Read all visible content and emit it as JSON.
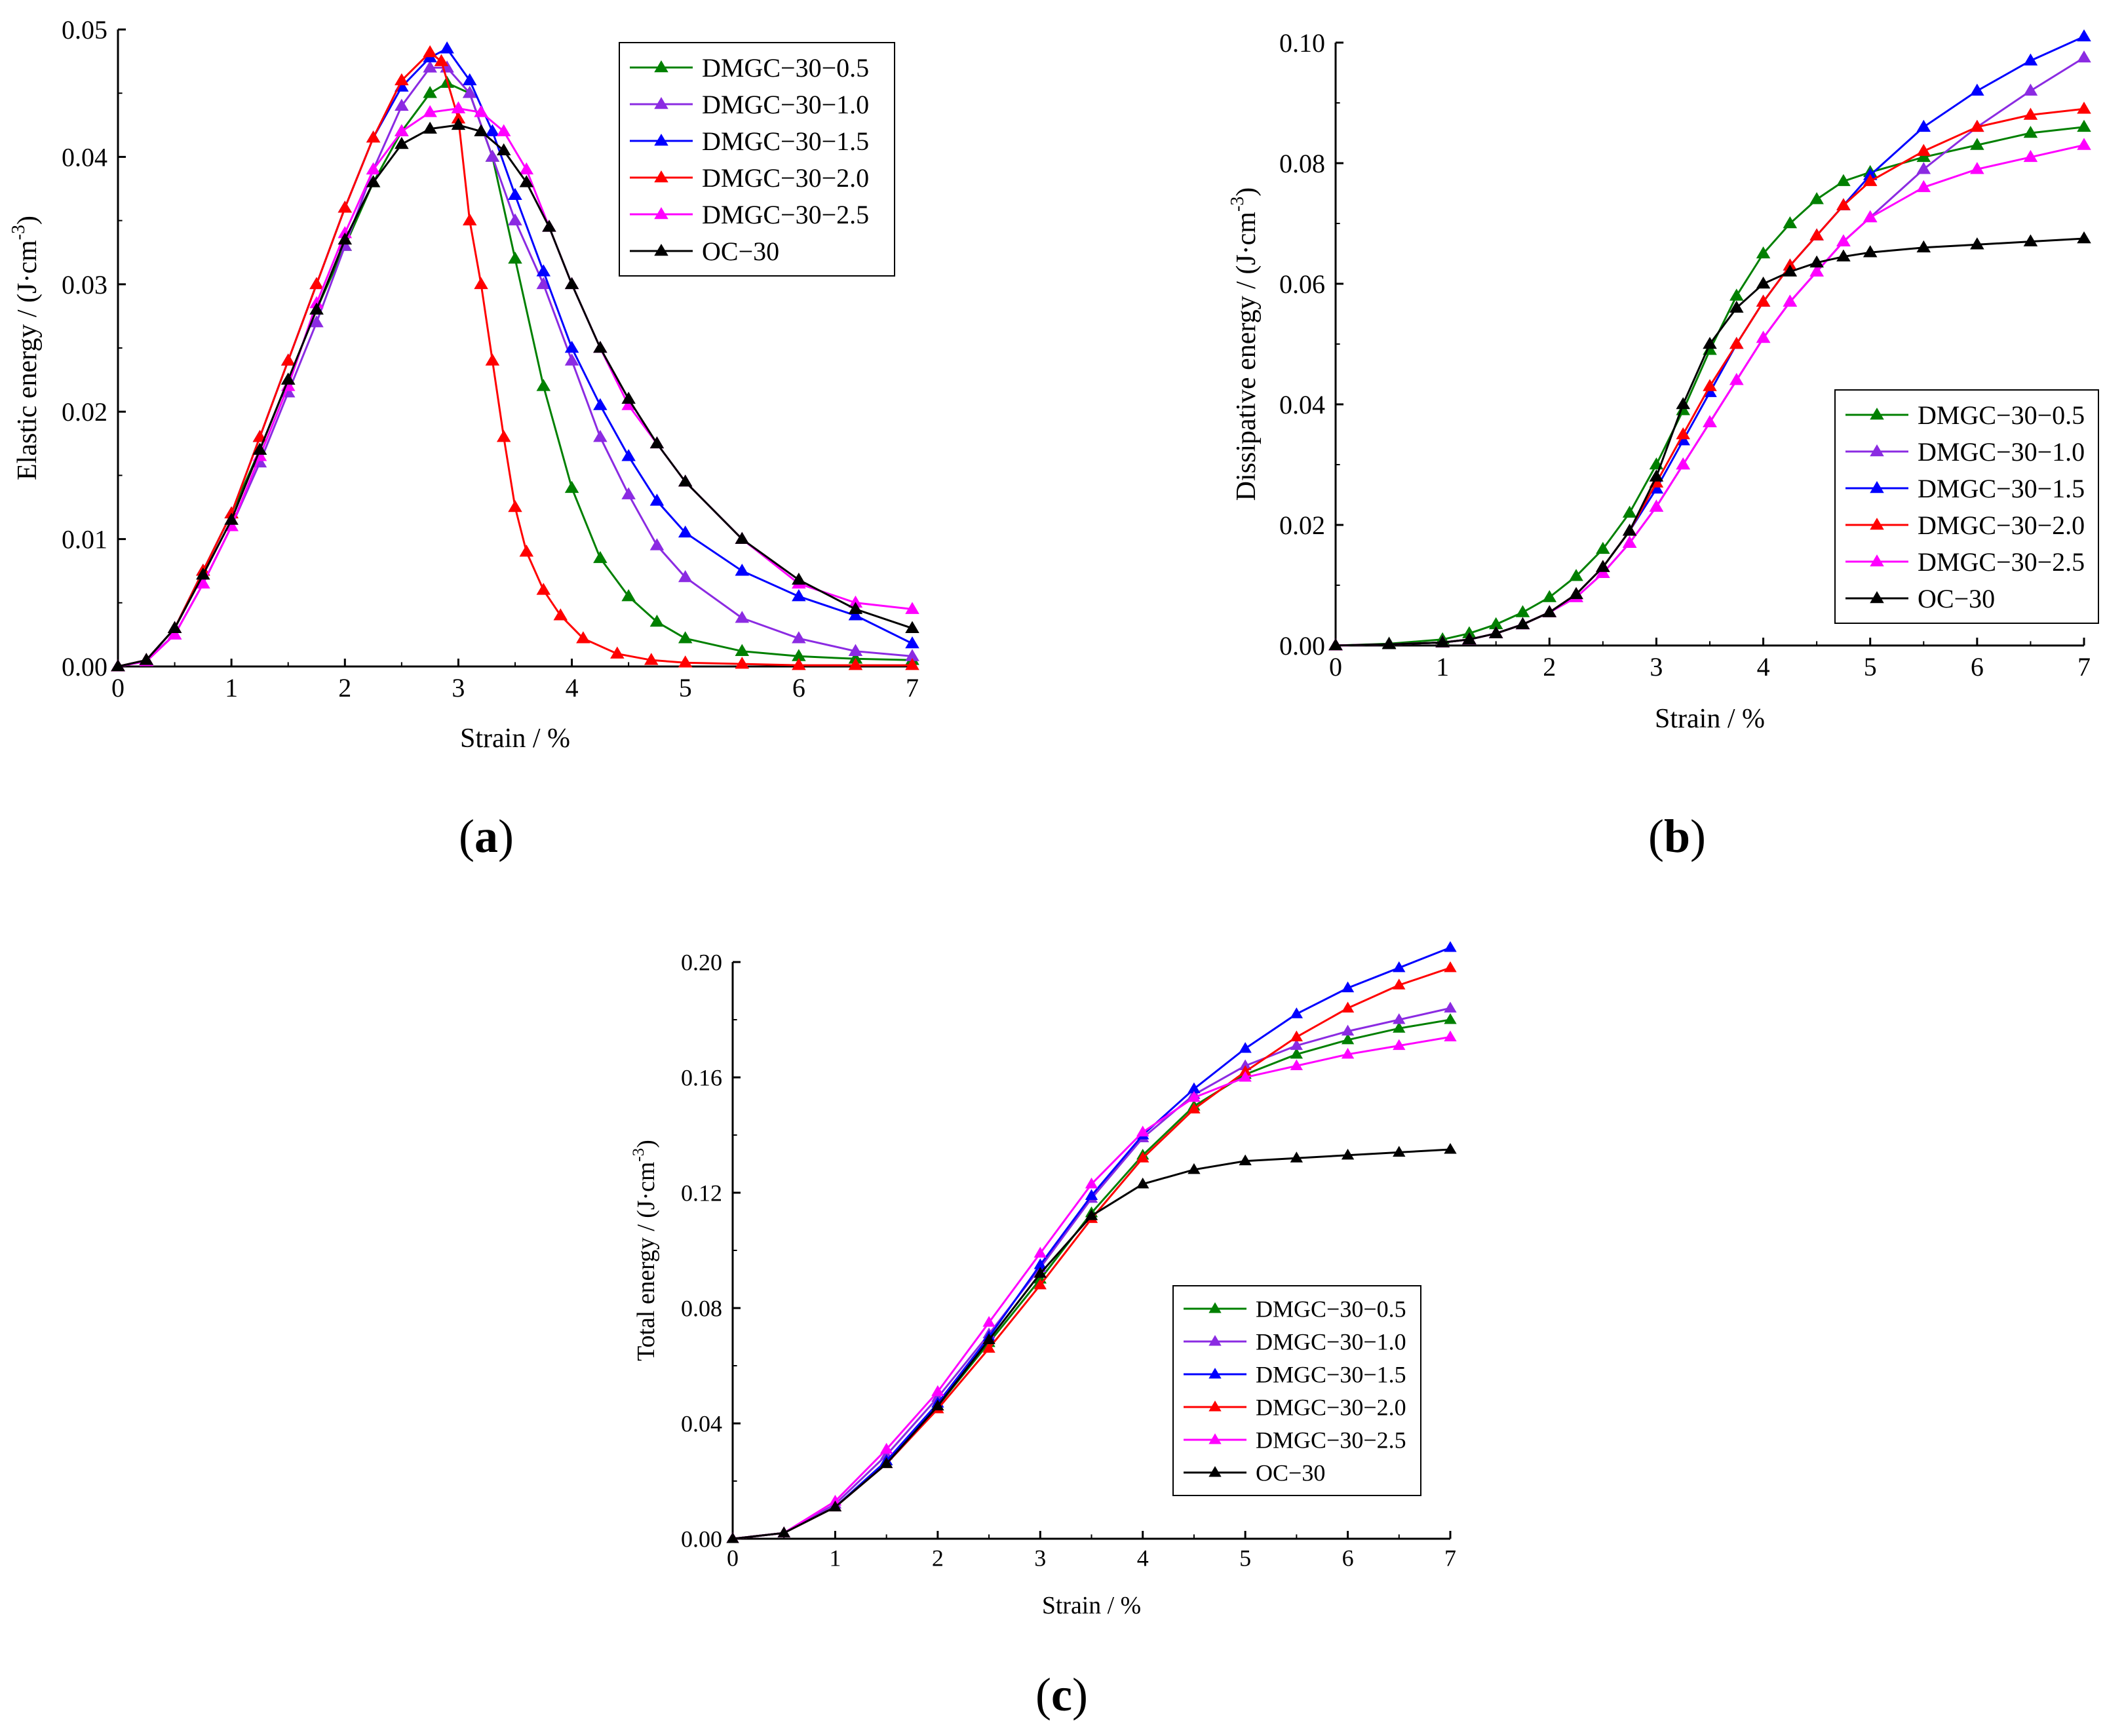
{
  "figure": {
    "panel_labels": [
      {
        "open": "(",
        "letter": "a",
        "close": ")"
      },
      {
        "open": "(",
        "letter": "b",
        "close": ")"
      },
      {
        "open": "(",
        "letter": "c",
        "close": ")"
      }
    ]
  },
  "colors": {
    "DMGC-30-0.5": "#008000",
    "DMGC-30-1.0": "#8b2be2",
    "DMGC-30-1.5": "#0000ff",
    "DMGC-30-2.0": "#ff0000",
    "DMGC-30-2.5": "#ff00ff",
    "OC-30": "#000000"
  },
  "chart_data": [
    {
      "type": "line",
      "panel": "a",
      "title": "",
      "xlabel": "Strain / %",
      "ylabel": "Elastic energy / (J·cm⁻³)",
      "xlim": [
        0,
        7
      ],
      "ylim": [
        0,
        0.05
      ],
      "xticks": [
        "0",
        "1",
        "2",
        "3",
        "4",
        "5",
        "6",
        "7"
      ],
      "yticks": [
        "0.00",
        "0.01",
        "0.02",
        "0.03",
        "0.04",
        "0.05"
      ],
      "legend_position": "top-right",
      "marker": "triangle",
      "series": [
        {
          "name": "DMGC−30−0.5",
          "key": "DMGC-30-0.5",
          "x": [
            0,
            0.25,
            0.5,
            0.75,
            1,
            1.25,
            1.5,
            1.75,
            2,
            2.25,
            2.5,
            2.75,
            2.9,
            3.1,
            3.3,
            3.5,
            3.75,
            4,
            4.25,
            4.5,
            4.75,
            5,
            5.5,
            6,
            6.5,
            7
          ],
          "y": [
            0,
            0.0005,
            0.003,
            0.0075,
            0.012,
            0.017,
            0.0225,
            0.028,
            0.033,
            0.038,
            0.042,
            0.045,
            0.0458,
            0.045,
            0.04,
            0.032,
            0.022,
            0.014,
            0.0085,
            0.0055,
            0.0035,
            0.0022,
            0.0012,
            0.0008,
            0.0006,
            0.0005
          ]
        },
        {
          "name": "DMGC−30−1.0",
          "key": "DMGC-30-1.0",
          "x": [
            0,
            0.25,
            0.5,
            0.75,
            1,
            1.25,
            1.5,
            1.75,
            2,
            2.25,
            2.5,
            2.75,
            2.9,
            3.1,
            3.3,
            3.5,
            3.75,
            4,
            4.25,
            4.5,
            4.75,
            5,
            5.5,
            6,
            6.5,
            7
          ],
          "y": [
            0,
            0.0005,
            0.0025,
            0.0065,
            0.011,
            0.016,
            0.0215,
            0.027,
            0.033,
            0.039,
            0.044,
            0.047,
            0.047,
            0.045,
            0.04,
            0.035,
            0.03,
            0.024,
            0.018,
            0.0135,
            0.0095,
            0.007,
            0.0038,
            0.0022,
            0.0012,
            0.0008
          ]
        },
        {
          "name": "DMGC−30−1.5",
          "key": "DMGC-30-1.5",
          "x": [
            0,
            0.25,
            0.5,
            0.75,
            1,
            1.25,
            1.5,
            1.75,
            2,
            2.25,
            2.5,
            2.75,
            2.9,
            3.1,
            3.3,
            3.5,
            3.75,
            4,
            4.25,
            4.5,
            4.75,
            5,
            5.5,
            6,
            6.5,
            7
          ],
          "y": [
            0,
            0.0005,
            0.003,
            0.0075,
            0.012,
            0.018,
            0.024,
            0.03,
            0.036,
            0.0415,
            0.0455,
            0.0478,
            0.0485,
            0.046,
            0.042,
            0.037,
            0.031,
            0.025,
            0.0205,
            0.0165,
            0.013,
            0.0105,
            0.0075,
            0.0055,
            0.004,
            0.0018
          ]
        },
        {
          "name": "DMGC−30−2.0",
          "key": "DMGC-30-2.0",
          "x": [
            0,
            0.25,
            0.5,
            0.75,
            1,
            1.25,
            1.5,
            1.75,
            2,
            2.25,
            2.5,
            2.75,
            2.85,
            3,
            3.1,
            3.2,
            3.3,
            3.4,
            3.5,
            3.6,
            3.75,
            3.9,
            4.1,
            4.4,
            4.7,
            5,
            5.5,
            6,
            6.5,
            7
          ],
          "y": [
            0,
            0.0005,
            0.003,
            0.0075,
            0.012,
            0.018,
            0.024,
            0.03,
            0.036,
            0.0415,
            0.046,
            0.0482,
            0.0475,
            0.043,
            0.035,
            0.03,
            0.024,
            0.018,
            0.0125,
            0.009,
            0.006,
            0.004,
            0.0022,
            0.001,
            0.0005,
            0.0003,
            0.0002,
            0.0001,
            0.0001,
            0.0001
          ]
        },
        {
          "name": "DMGC−30−2.5",
          "key": "DMGC-30-2.5",
          "x": [
            0,
            0.25,
            0.5,
            0.75,
            1,
            1.25,
            1.5,
            1.75,
            2,
            2.25,
            2.5,
            2.75,
            3,
            3.2,
            3.4,
            3.6,
            3.8,
            4,
            4.25,
            4.5,
            4.75,
            5,
            5.5,
            6,
            6.5,
            7
          ],
          "y": [
            0,
            0.0004,
            0.0025,
            0.0065,
            0.011,
            0.0165,
            0.022,
            0.0285,
            0.034,
            0.039,
            0.042,
            0.0435,
            0.0438,
            0.0435,
            0.042,
            0.039,
            0.0345,
            0.03,
            0.025,
            0.0205,
            0.0175,
            0.0145,
            0.01,
            0.0065,
            0.005,
            0.0045
          ]
        },
        {
          "name": "OC−30",
          "key": "OC-30",
          "x": [
            0,
            0.25,
            0.5,
            0.75,
            1,
            1.25,
            1.5,
            1.75,
            2,
            2.25,
            2.5,
            2.75,
            3,
            3.2,
            3.4,
            3.6,
            3.8,
            4,
            4.25,
            4.5,
            4.75,
            5,
            5.5,
            6,
            6.5,
            7
          ],
          "y": [
            0,
            0.0005,
            0.003,
            0.0072,
            0.0115,
            0.017,
            0.0225,
            0.028,
            0.0335,
            0.038,
            0.041,
            0.0422,
            0.0425,
            0.042,
            0.0405,
            0.038,
            0.0345,
            0.03,
            0.025,
            0.021,
            0.0175,
            0.0145,
            0.01,
            0.0068,
            0.0045,
            0.003
          ]
        }
      ]
    },
    {
      "type": "line",
      "panel": "b",
      "title": "",
      "xlabel": "Strain / %",
      "ylabel": "Dissipative energy / (J·cm⁻³)",
      "xlim": [
        0,
        7
      ],
      "ylim": [
        0,
        0.1
      ],
      "xticks": [
        "0",
        "1",
        "2",
        "3",
        "4",
        "5",
        "6",
        "7"
      ],
      "yticks": [
        "0.00",
        "0.02",
        "0.04",
        "0.06",
        "0.08",
        "0.10"
      ],
      "legend_position": "center-right",
      "marker": "triangle",
      "series": [
        {
          "name": "DMGC−30−0.5",
          "key": "DMGC-30-0.5",
          "x": [
            0,
            0.5,
            1,
            1.25,
            1.5,
            1.75,
            2,
            2.25,
            2.5,
            2.75,
            3,
            3.25,
            3.5,
            3.75,
            4,
            4.25,
            4.5,
            4.75,
            5,
            5.5,
            6,
            6.5,
            7
          ],
          "y": [
            0,
            0.0003,
            0.001,
            0.002,
            0.0035,
            0.0055,
            0.008,
            0.0115,
            0.016,
            0.022,
            0.03,
            0.039,
            0.049,
            0.058,
            0.065,
            0.07,
            0.074,
            0.077,
            0.0785,
            0.081,
            0.083,
            0.085,
            0.086
          ]
        },
        {
          "name": "DMGC−30−1.0",
          "key": "DMGC-30-1.0",
          "x": [
            0,
            0.5,
            1,
            1.25,
            1.5,
            1.75,
            2,
            2.25,
            2.5,
            2.75,
            3,
            3.25,
            3.5,
            3.75,
            4,
            4.25,
            4.5,
            4.75,
            5,
            5.5,
            6,
            6.5,
            7
          ],
          "y": [
            0,
            0.0002,
            0.0005,
            0.001,
            0.002,
            0.0035,
            0.0055,
            0.008,
            0.012,
            0.017,
            0.023,
            0.03,
            0.037,
            0.044,
            0.051,
            0.057,
            0.062,
            0.067,
            0.071,
            0.079,
            0.086,
            0.092,
            0.0975
          ]
        },
        {
          "name": "DMGC−30−1.5",
          "key": "DMGC-30-1.5",
          "x": [
            0,
            0.5,
            1,
            1.25,
            1.5,
            1.75,
            2,
            2.25,
            2.5,
            2.75,
            3,
            3.25,
            3.5,
            3.75,
            4,
            4.25,
            4.5,
            4.75,
            5,
            5.5,
            6,
            6.5,
            7
          ],
          "y": [
            0,
            0.0002,
            0.0005,
            0.001,
            0.002,
            0.0035,
            0.0055,
            0.0085,
            0.013,
            0.019,
            0.026,
            0.034,
            0.042,
            0.05,
            0.057,
            0.063,
            0.068,
            0.073,
            0.078,
            0.086,
            0.092,
            0.097,
            0.101
          ]
        },
        {
          "name": "DMGC−30−2.0",
          "key": "DMGC-30-2.0",
          "x": [
            0,
            0.5,
            1,
            1.25,
            1.5,
            1.75,
            2,
            2.25,
            2.5,
            2.75,
            3,
            3.25,
            3.5,
            3.75,
            4,
            4.25,
            4.5,
            4.75,
            5,
            5.5,
            6,
            6.5,
            7
          ],
          "y": [
            0,
            0.0002,
            0.0005,
            0.001,
            0.002,
            0.0035,
            0.0055,
            0.0085,
            0.013,
            0.019,
            0.027,
            0.035,
            0.043,
            0.05,
            0.057,
            0.063,
            0.068,
            0.073,
            0.077,
            0.082,
            0.086,
            0.088,
            0.089
          ]
        },
        {
          "name": "DMGC−30−2.5",
          "key": "DMGC-30-2.5",
          "x": [
            0,
            0.5,
            1,
            1.25,
            1.5,
            1.75,
            2,
            2.25,
            2.5,
            2.75,
            3,
            3.25,
            3.5,
            3.75,
            4,
            4.25,
            4.5,
            4.75,
            5,
            5.5,
            6,
            6.5,
            7
          ],
          "y": [
            0,
            0.0002,
            0.0005,
            0.001,
            0.002,
            0.0035,
            0.0055,
            0.008,
            0.012,
            0.017,
            0.023,
            0.03,
            0.037,
            0.044,
            0.051,
            0.057,
            0.062,
            0.067,
            0.071,
            0.076,
            0.079,
            0.081,
            0.083
          ]
        },
        {
          "name": "OC−30",
          "key": "OC-30",
          "x": [
            0,
            0.5,
            1,
            1.25,
            1.5,
            1.75,
            2,
            2.25,
            2.5,
            2.75,
            3,
            3.25,
            3.5,
            3.75,
            4,
            4.25,
            4.5,
            4.75,
            5,
            5.5,
            6,
            6.5,
            7
          ],
          "y": [
            0,
            0.0002,
            0.0005,
            0.001,
            0.002,
            0.0035,
            0.0055,
            0.0085,
            0.013,
            0.019,
            0.028,
            0.04,
            0.05,
            0.056,
            0.06,
            0.062,
            0.0635,
            0.0645,
            0.0652,
            0.066,
            0.0665,
            0.067,
            0.0675
          ]
        }
      ]
    },
    {
      "type": "line",
      "panel": "c",
      "title": "",
      "xlabel": "Strain / %",
      "ylabel": "Total energy / (J·cm⁻³)",
      "xlim": [
        0,
        7
      ],
      "ylim": [
        0,
        0.2
      ],
      "xticks": [
        "0",
        "1",
        "2",
        "3",
        "4",
        "5",
        "6",
        "7"
      ],
      "yticks": [
        "0.00",
        "0.04",
        "0.08",
        "0.12",
        "0.16",
        "0.20"
      ],
      "legend_position": "center-right",
      "marker": "triangle",
      "series": [
        {
          "name": "DMGC−30−0.5",
          "key": "DMGC-30-0.5",
          "x": [
            0,
            0.5,
            1,
            1.5,
            2,
            2.5,
            3,
            3.5,
            4,
            4.5,
            5,
            5.5,
            6,
            6.5,
            7
          ],
          "y": [
            0,
            0.002,
            0.011,
            0.027,
            0.046,
            0.068,
            0.09,
            0.113,
            0.133,
            0.15,
            0.161,
            0.168,
            0.173,
            0.177,
            0.18
          ]
        },
        {
          "name": "DMGC−30−1.0",
          "key": "DMGC-30-1.0",
          "x": [
            0,
            0.5,
            1,
            1.5,
            2,
            2.5,
            3,
            3.5,
            4,
            4.5,
            5,
            5.5,
            6,
            6.5,
            7
          ],
          "y": [
            0,
            0.002,
            0.012,
            0.029,
            0.049,
            0.071,
            0.094,
            0.118,
            0.139,
            0.154,
            0.164,
            0.171,
            0.176,
            0.18,
            0.184
          ]
        },
        {
          "name": "DMGC−30−1.5",
          "key": "DMGC-30-1.5",
          "x": [
            0,
            0.5,
            1,
            1.5,
            2,
            2.5,
            3,
            3.5,
            4,
            4.5,
            5,
            5.5,
            6,
            6.5,
            7
          ],
          "y": [
            0,
            0.002,
            0.011,
            0.027,
            0.047,
            0.07,
            0.095,
            0.119,
            0.14,
            0.156,
            0.17,
            0.182,
            0.191,
            0.198,
            0.205
          ]
        },
        {
          "name": "DMGC−30−2.0",
          "key": "DMGC-30-2.0",
          "x": [
            0,
            0.5,
            1,
            1.5,
            2,
            2.5,
            3,
            3.5,
            4,
            4.5,
            5,
            5.5,
            6,
            6.5,
            7
          ],
          "y": [
            0,
            0.002,
            0.011,
            0.026,
            0.045,
            0.066,
            0.088,
            0.111,
            0.132,
            0.149,
            0.162,
            0.174,
            0.184,
            0.192,
            0.198
          ]
        },
        {
          "name": "DMGC−30−2.5",
          "key": "DMGC-30-2.5",
          "x": [
            0,
            0.5,
            1,
            1.5,
            2,
            2.5,
            3,
            3.5,
            4,
            4.5,
            5,
            5.5,
            6,
            6.5,
            7
          ],
          "y": [
            0,
            0.002,
            0.013,
            0.031,
            0.051,
            0.075,
            0.099,
            0.123,
            0.141,
            0.153,
            0.16,
            0.164,
            0.168,
            0.171,
            0.174
          ]
        },
        {
          "name": "OC−30",
          "key": "OC-30",
          "x": [
            0,
            0.5,
            1,
            1.5,
            2,
            2.5,
            3,
            3.5,
            4,
            4.5,
            5,
            5.5,
            6,
            6.5,
            7
          ],
          "y": [
            0,
            0.002,
            0.011,
            0.026,
            0.046,
            0.069,
            0.092,
            0.112,
            0.123,
            0.128,
            0.131,
            0.132,
            0.133,
            0.134,
            0.135
          ]
        }
      ]
    }
  ]
}
